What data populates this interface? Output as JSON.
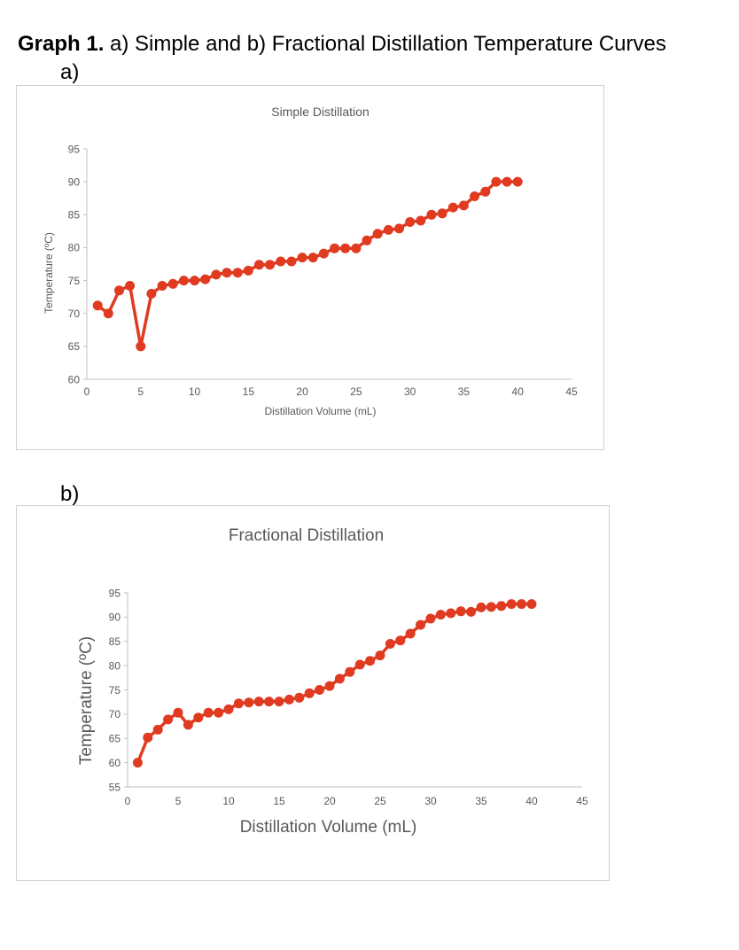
{
  "caption": {
    "bold": "Graph 1.",
    "text": " a) Simple and b) Fractional Distillation Temperature Curves"
  },
  "labels": {
    "a": "a)",
    "b": "b)"
  },
  "colors": {
    "series": "#e03a21",
    "axis": "#bfbfbf",
    "text": "#595959",
    "frame": "#d0d0d0"
  },
  "chart_data": [
    {
      "id": "simple",
      "type": "line",
      "title": "Simple Distillation",
      "xlabel": "Distillation Volume (mL)",
      "ylabel": "Temperature (ºC)",
      "xlim": [
        0,
        45
      ],
      "ylim": [
        60,
        95
      ],
      "xticks": [
        0,
        5,
        10,
        15,
        20,
        25,
        30,
        35,
        40,
        45
      ],
      "yticks": [
        60,
        65,
        70,
        75,
        80,
        85,
        90,
        95
      ],
      "grid": false,
      "series": [
        {
          "name": "Simple Distillation",
          "x": [
            1,
            2,
            3,
            4,
            5,
            6,
            7,
            8,
            9,
            10,
            11,
            12,
            13,
            14,
            15,
            16,
            17,
            18,
            19,
            20,
            21,
            22,
            23,
            24,
            25,
            26,
            27,
            28,
            29,
            30,
            31,
            32,
            33,
            34,
            35,
            36,
            37,
            38,
            39,
            40
          ],
          "y": [
            71.2,
            70.0,
            73.5,
            74.2,
            65.0,
            73.0,
            74.2,
            74.5,
            75.0,
            75.0,
            75.2,
            75.9,
            76.2,
            76.2,
            76.5,
            77.4,
            77.4,
            77.9,
            77.9,
            78.5,
            78.5,
            79.1,
            79.9,
            79.9,
            79.9,
            81.1,
            82.1,
            82.7,
            82.9,
            83.9,
            84.1,
            85.0,
            85.2,
            86.1,
            86.4,
            87.8,
            88.5,
            90.0,
            90.0,
            90.0
          ]
        }
      ]
    },
    {
      "id": "fractional",
      "type": "line",
      "title": "Fractional Distillation",
      "xlabel": "Distillation Volume (mL)",
      "ylabel": "Temperature (ºC)",
      "xlim": [
        0,
        45
      ],
      "ylim": [
        55,
        95
      ],
      "xticks": [
        0,
        5,
        10,
        15,
        20,
        25,
        30,
        35,
        40,
        45
      ],
      "yticks": [
        55,
        60,
        65,
        70,
        75,
        80,
        85,
        90,
        95
      ],
      "grid": false,
      "series": [
        {
          "name": "Fractional Distillation",
          "x": [
            1,
            2,
            3,
            4,
            5,
            6,
            7,
            8,
            9,
            10,
            11,
            12,
            13,
            14,
            15,
            16,
            17,
            18,
            19,
            20,
            21,
            22,
            23,
            24,
            25,
            26,
            27,
            28,
            29,
            30,
            31,
            32,
            33,
            34,
            35,
            36,
            37,
            38,
            39,
            40
          ],
          "y": [
            60.0,
            65.2,
            66.8,
            68.9,
            70.3,
            67.8,
            69.3,
            70.3,
            70.3,
            71.0,
            72.2,
            72.4,
            72.6,
            72.6,
            72.6,
            73.0,
            73.4,
            74.3,
            75.0,
            75.8,
            77.3,
            78.7,
            80.2,
            81.0,
            82.1,
            84.5,
            85.2,
            86.6,
            88.4,
            89.7,
            90.5,
            90.8,
            91.2,
            91.1,
            92.0,
            92.1,
            92.3,
            92.7,
            92.7,
            92.7
          ]
        }
      ]
    }
  ]
}
